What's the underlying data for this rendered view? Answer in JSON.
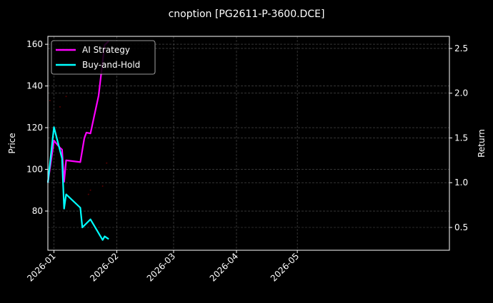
{
  "chart_data": {
    "type": "line",
    "title": "cnoption [PG2611-P-3600.DCE]",
    "ylabel_left": "Price",
    "ylabel_right": "Return",
    "xlim": [
      "2025-12-29",
      "2026-07-15"
    ],
    "ylim_left": [
      61.2,
      163.8
    ],
    "ylim_right": [
      0.245,
      2.635
    ],
    "x_ticks": [
      "2026-01",
      "2026-02",
      "2026-03",
      "2026-04",
      "2026-05"
    ],
    "x_tick_dates": [
      "2026-01-01",
      "2026-02-01",
      "2026-03-01",
      "2026-04-01",
      "2026-05-01"
    ],
    "y_ticks_left": [
      80,
      100,
      120,
      140,
      160
    ],
    "y_ticks_right": [
      0.5,
      1.0,
      1.5,
      2.0,
      2.5
    ],
    "grid": true,
    "legend": "top-left",
    "background": "#000000",
    "series": [
      {
        "name": "AI Strategy",
        "axis": "right",
        "color": "#ff00ff",
        "x": [
          "2025-12-29",
          "2026-01-01",
          "2026-01-04",
          "2026-01-05",
          "2026-01-06",
          "2026-01-07",
          "2026-01-14",
          "2026-01-16",
          "2026-01-17",
          "2026-01-19",
          "2026-01-23",
          "2026-01-26",
          "2026-01-28"
        ],
        "y": [
          1.0,
          1.47,
          1.39,
          1.37,
          1.01,
          1.25,
          1.23,
          1.5,
          1.56,
          1.55,
          1.97,
          2.54,
          2.58
        ]
      },
      {
        "name": "Buy-and-Hold",
        "axis": "right",
        "color": "#00ffff",
        "x": [
          "2025-12-29",
          "2026-01-01",
          "2026-01-05",
          "2026-01-06",
          "2026-01-07",
          "2026-01-14",
          "2026-01-15",
          "2026-01-19",
          "2026-01-25",
          "2026-01-26",
          "2026-01-28"
        ],
        "y": [
          1.0,
          1.62,
          1.27,
          0.71,
          0.87,
          0.72,
          0.5,
          0.59,
          0.36,
          0.4,
          0.37
        ]
      }
    ],
    "price_points": {
      "axis": "left",
      "color": "#ff0000",
      "x": [
        "2025-12-30",
        "2026-01-04",
        "2026-01-07",
        "2026-01-18",
        "2026-01-19",
        "2026-01-25",
        "2026-01-27"
      ],
      "y": [
        133,
        130,
        135,
        88,
        90,
        92,
        103
      ]
    }
  }
}
